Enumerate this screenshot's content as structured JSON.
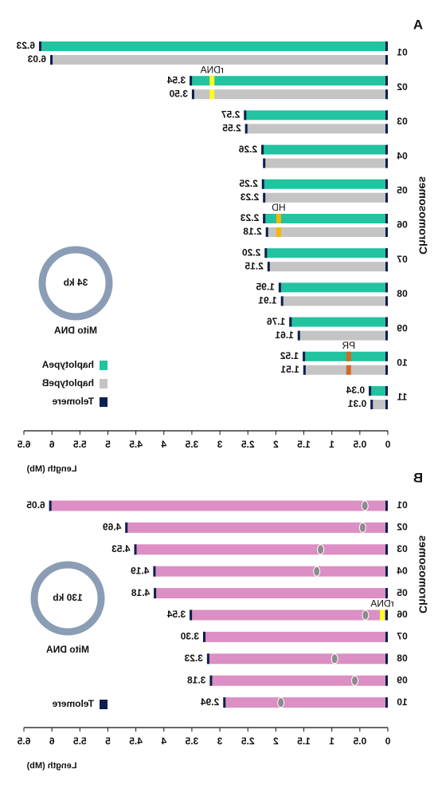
{
  "chart_data": [
    {
      "type": "bar",
      "title": "A",
      "y_label": "Chromosomes",
      "x_label": "Length (Mb)",
      "categories": [
        "01",
        "02",
        "03",
        "04",
        "05",
        "06",
        "07",
        "08",
        "09",
        "10",
        "11"
      ],
      "series": [
        {
          "name": "haplotypeA",
          "color": "#22c3a0",
          "values": [
            6.23,
            3.54,
            2.57,
            2.26,
            2.25,
            2.23,
            2.2,
            1.95,
            1.76,
            1.52,
            0.34
          ],
          "value_labels": [
            "6.23",
            "3.54",
            "2.57",
            "2.26",
            "2.25",
            "2.23",
            "2.20",
            "1.95",
            "1.76",
            "1.52",
            "0.34"
          ]
        },
        {
          "name": "haplotypeB",
          "color": "#c4c4c4",
          "values": [
            6.03,
            3.5,
            2.55,
            2.23,
            2.23,
            2.18,
            2.15,
            1.91,
            1.61,
            1.51,
            0.31
          ],
          "value_labels": [
            "6.03",
            "3.50",
            "2.55",
            null,
            "2.23",
            "2.18",
            "2.15",
            "1.91",
            "1.61",
            "1.51",
            "0.31"
          ]
        }
      ],
      "telomere": {
        "name": "Telomere",
        "color": "#0d1f4f"
      },
      "annotations": [
        {
          "text": "rDNA",
          "category": 1,
          "x": 3.14,
          "color": "#ffff1a"
        },
        {
          "text": "HD",
          "category": 5,
          "x": 1.95,
          "color": "#f5b800"
        },
        {
          "text": "PR",
          "category": 9,
          "x": 0.7,
          "color": "#d2691e"
        }
      ],
      "mito": {
        "label": "Mito DNA",
        "size_label": "34 kb"
      },
      "xlim": [
        0,
        6.5
      ],
      "xticks": [
        0,
        0.5,
        1,
        1.5,
        2,
        2.5,
        3,
        3.5,
        4,
        4.5,
        5,
        5.5,
        6,
        6.5
      ]
    },
    {
      "type": "bar",
      "title": "B",
      "y_label": "Chromosomes",
      "x_label": "Length (Mb)",
      "categories": [
        "01",
        "02",
        "03",
        "04",
        "05",
        "06",
        "07",
        "08",
        "09",
        "10"
      ],
      "series": [
        {
          "name": "haplotype",
          "color": "#db8fc4",
          "values": [
            6.05,
            4.69,
            4.53,
            4.19,
            4.18,
            3.54,
            3.3,
            3.23,
            3.18,
            2.94
          ],
          "value_labels": [
            "6.05",
            "4.69",
            "4.53",
            "4.19",
            "4.18",
            "3.54",
            "3.30",
            "3.23",
            "3.18",
            "2.94"
          ]
        }
      ],
      "centromeres": [
        0.41,
        0.45,
        1.2,
        1.27,
        null,
        0.4,
        null,
        0.95,
        0.59,
        1.91
      ],
      "telomere": {
        "name": "Telomere",
        "color": "#0d1f4f"
      },
      "annotations": [
        {
          "text": "rDNA",
          "category": 5,
          "x": 0.1,
          "color": "#ffff1a"
        }
      ],
      "mito": {
        "label": "Mito DNA",
        "size_label": "130 kb"
      },
      "xlim": [
        0,
        6.5
      ],
      "xticks": [
        0,
        0.5,
        1,
        1.5,
        2,
        2.5,
        3,
        3.5,
        4,
        4.5,
        5,
        5.5,
        6,
        6.5
      ]
    }
  ]
}
